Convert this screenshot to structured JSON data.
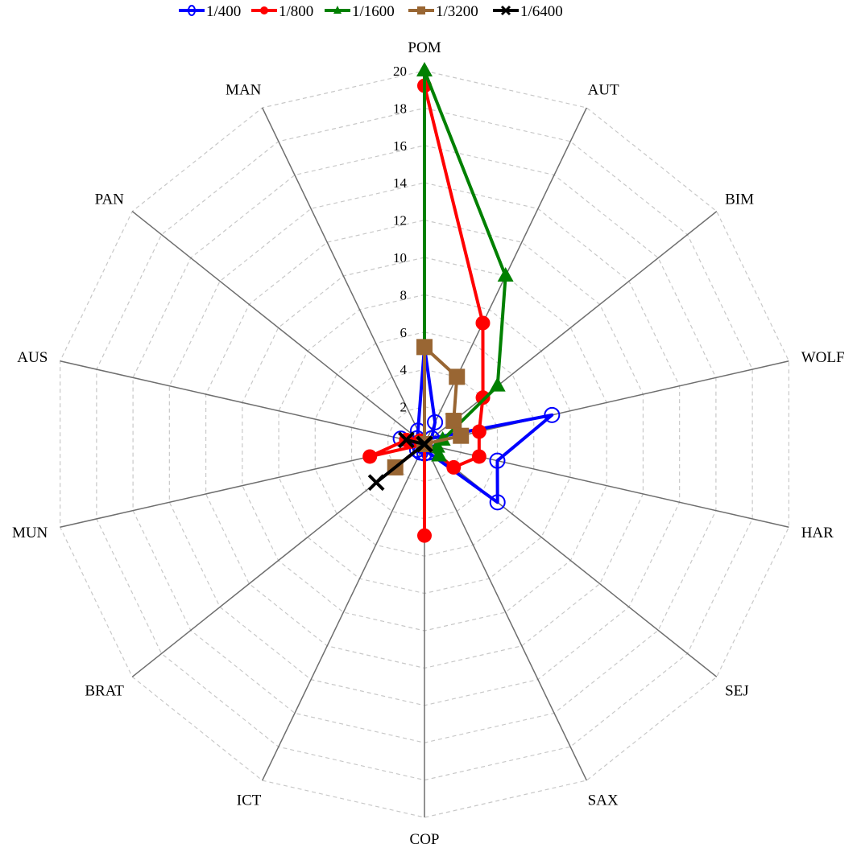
{
  "chart_data": {
    "type": "radar",
    "title": "",
    "categories": [
      "POM",
      "AUT",
      "BIM",
      "WOLF",
      "HAR",
      "SEJ",
      "SAX",
      "COP",
      "ICT",
      "BRAT",
      "MUN",
      "AUS",
      "PAN",
      "MAN"
    ],
    "rlim": [
      0,
      20
    ],
    "ticks": [
      "2",
      "4",
      "6",
      "8",
      "10",
      "12",
      "14",
      "16",
      "18",
      "20"
    ],
    "tick_values": [
      2,
      4,
      6,
      8,
      10,
      12,
      14,
      16,
      18,
      20
    ],
    "grid": true,
    "legend_position": "top",
    "series": [
      {
        "name": "1/400",
        "color": "#0000ff",
        "marker": "open-circle",
        "values": [
          5.2,
          1.3,
          0.5,
          7,
          4,
          5,
          0.5,
          0.5,
          0.5,
          0.5,
          0.3,
          1.3,
          0.5,
          0.8
        ]
      },
      {
        "name": "1/800",
        "color": "#ff0000",
        "marker": "filled-circle",
        "values": [
          19.2,
          7.2,
          4,
          3,
          3,
          2,
          0,
          4.9,
          0,
          0,
          3,
          1,
          0.3,
          0
        ]
      },
      {
        "name": "1/1600",
        "color": "#008000",
        "marker": "triangle",
        "values": [
          20,
          10,
          5,
          1,
          0.7,
          1,
          0,
          0,
          0,
          0,
          0,
          0,
          0,
          0
        ]
      },
      {
        "name": "1/3200",
        "color": "#996633",
        "marker": "square",
        "values": [
          5.2,
          4,
          2,
          2,
          0,
          0,
          0,
          0,
          0,
          2,
          0,
          0,
          0,
          0
        ]
      },
      {
        "name": "1/6400",
        "color": "#000000",
        "marker": "x",
        "values": [
          0,
          0,
          0,
          0,
          0,
          0,
          0,
          0,
          0,
          3.3,
          0,
          1,
          0,
          0
        ]
      }
    ]
  }
}
